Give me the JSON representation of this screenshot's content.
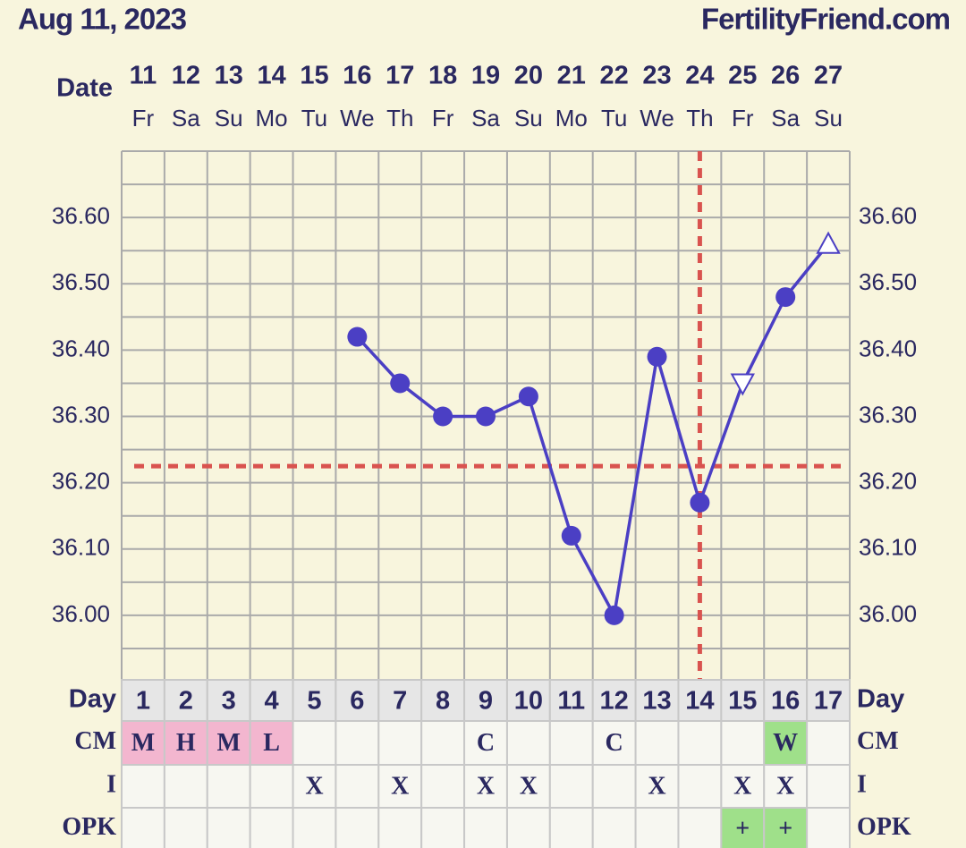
{
  "chart_data": {
    "type": "line",
    "title": "Aug 11, 2023",
    "site": "FertilityFriend.com",
    "x_label": "Date",
    "categories": [
      "11",
      "12",
      "13",
      "14",
      "15",
      "16",
      "17",
      "18",
      "19",
      "20",
      "21",
      "22",
      "23",
      "24",
      "25",
      "26",
      "27"
    ],
    "weekdays": [
      "Fr",
      "Sa",
      "Su",
      "Mo",
      "Tu",
      "We",
      "Th",
      "Fr",
      "Sa",
      "Su",
      "Mo",
      "Tu",
      "We",
      "Th",
      "Fr",
      "Sa",
      "Su"
    ],
    "series": [
      {
        "name": "Temperature",
        "color": "#4b3fc4",
        "values": [
          null,
          null,
          null,
          null,
          null,
          36.42,
          36.35,
          36.3,
          36.3,
          36.33,
          36.12,
          36.0,
          36.39,
          36.17,
          36.35,
          36.48,
          36.56
        ],
        "markers": [
          null,
          null,
          null,
          null,
          null,
          "circle",
          "circle",
          "circle",
          "circle",
          "circle",
          "circle",
          "circle",
          "circle",
          "circle",
          "triangle-down",
          "circle",
          "triangle-up"
        ]
      }
    ],
    "ylim": [
      35.9,
      36.7
    ],
    "yticks": [
      {
        "value": 36.0,
        "label": "36.00"
      },
      {
        "value": 36.1,
        "label": "36.10"
      },
      {
        "value": 36.2,
        "label": "36.20"
      },
      {
        "value": 36.3,
        "label": "36.30"
      },
      {
        "value": 36.4,
        "label": "36.40"
      },
      {
        "value": 36.5,
        "label": "36.50"
      },
      {
        "value": 36.6,
        "label": "36.60"
      }
    ],
    "minor_yticks": [
      35.95,
      36.05,
      36.15,
      36.25,
      36.35,
      36.45,
      36.55,
      36.65
    ],
    "grid": true,
    "coverline": 36.225,
    "coverline_color": "#d9534f",
    "ovulation_day": 14,
    "rows": [
      {
        "label": "Day",
        "cells": [
          1,
          2,
          3,
          4,
          5,
          6,
          7,
          8,
          9,
          10,
          11,
          12,
          13,
          14,
          15,
          16,
          17
        ]
      },
      {
        "label": "CM",
        "cells": [
          "M",
          "H",
          "M",
          "L",
          null,
          null,
          null,
          null,
          "C",
          null,
          null,
          "C",
          null,
          null,
          null,
          "W",
          null
        ],
        "colors": [
          "#f3b6cf",
          "#f3b6cf",
          "#f3b6cf",
          "#f3b6cf",
          null,
          null,
          null,
          null,
          null,
          null,
          null,
          null,
          null,
          null,
          null,
          "#9fe08a",
          null
        ]
      },
      {
        "label": "I",
        "cells": [
          null,
          null,
          null,
          null,
          "X",
          null,
          "X",
          null,
          "X",
          "X",
          null,
          null,
          "X",
          null,
          "X",
          "X",
          null
        ]
      },
      {
        "label": "OPK",
        "cells": [
          null,
          null,
          null,
          null,
          null,
          null,
          null,
          null,
          null,
          null,
          null,
          null,
          null,
          null,
          "+",
          "+",
          null
        ],
        "colors": [
          null,
          null,
          null,
          null,
          null,
          null,
          null,
          null,
          null,
          null,
          null,
          null,
          null,
          null,
          "#9fe08a",
          "#9fe08a",
          null
        ]
      }
    ]
  }
}
